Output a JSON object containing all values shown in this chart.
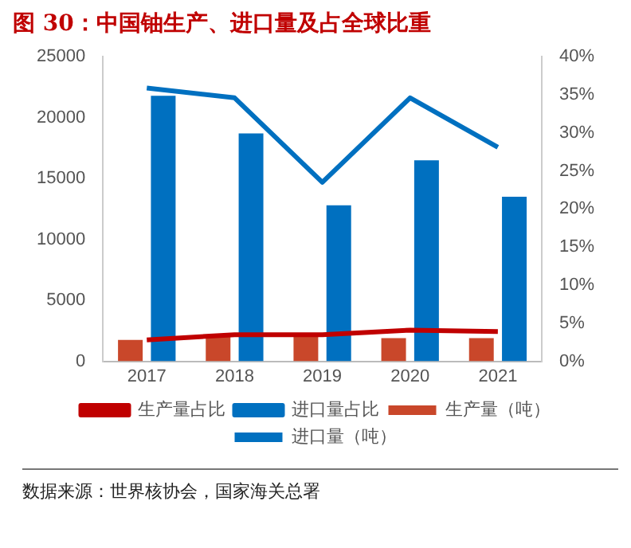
{
  "chart_data": {
    "type": "bar",
    "title": "图 30：中国铀生产、进口量及占全球比重",
    "categories": [
      "2017",
      "2018",
      "2019",
      "2020",
      "2021"
    ],
    "series": [
      {
        "name": "生产量（吨）",
        "color": "#c9472a",
        "values": [
          1750,
          2000,
          2000,
          1900,
          1900
        ]
      },
      {
        "name": "进口量（吨）",
        "color": "#0070c0",
        "values": [
          21800,
          18700,
          12800,
          16500,
          13500
        ]
      },
      {
        "name": "生产量占比",
        "type": "line",
        "axis": "y2",
        "color": "#c00000",
        "values": [
          2.8,
          3.5,
          3.5,
          4.1,
          3.9
        ]
      },
      {
        "name": "进口量占比",
        "type": "line",
        "axis": "y2",
        "color": "#0070c0",
        "values": [
          35.9,
          34.6,
          23.5,
          34.6,
          28.1
        ]
      }
    ],
    "ylim": [
      0,
      25000
    ],
    "yticks": [
      0,
      5000,
      10000,
      15000,
      20000,
      25000
    ],
    "y2lim": [
      0,
      40
    ],
    "y2ticks": [
      {
        "value": 0,
        "label": "0%"
      },
      {
        "value": 5,
        "label": "5%"
      },
      {
        "value": 10,
        "label": "10%"
      },
      {
        "value": 15,
        "label": "15%"
      },
      {
        "value": 20,
        "label": "20%"
      },
      {
        "value": 25,
        "label": "25%"
      },
      {
        "value": 30,
        "label": "30%"
      },
      {
        "value": 35,
        "label": "35%"
      },
      {
        "value": 40,
        "label": "40%"
      }
    ],
    "grid": false,
    "legend": "bottom",
    "marker": "none",
    "annotations": [
      "数据来源：世界核协会，国家海关总署"
    ]
  }
}
